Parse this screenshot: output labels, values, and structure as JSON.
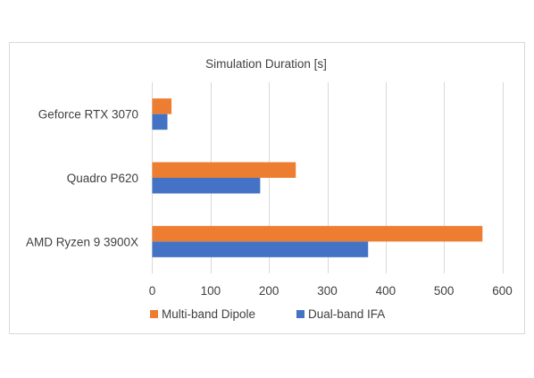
{
  "chart_data": {
    "type": "bar",
    "orientation": "horizontal",
    "title": "Simulation Duration [s]",
    "xlabel": "",
    "ylabel": "",
    "categories": [
      "Geforce RTX 3070",
      "Quadro P620",
      "AMD Ryzen 9 3900X"
    ],
    "series": [
      {
        "name": "Multi-band Dipole",
        "color": "#ed7d31",
        "values": [
          33,
          246,
          566
        ]
      },
      {
        "name": "Dual-band IFA",
        "color": "#4472c4",
        "values": [
          26,
          185,
          370
        ]
      }
    ],
    "xlim": [
      0,
      600
    ],
    "xticks": [
      "0",
      "100",
      "200",
      "300",
      "400",
      "500",
      "600"
    ],
    "grid": "vertical",
    "legend": "bottom"
  }
}
